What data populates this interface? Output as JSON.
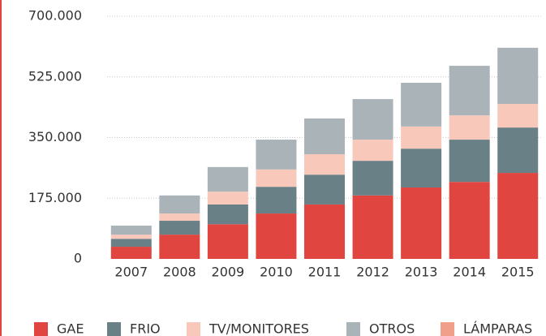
{
  "chart_data": {
    "type": "bar",
    "stacked": true,
    "categories": [
      "2007",
      "2008",
      "2009",
      "2010",
      "2011",
      "2012",
      "2013",
      "2014",
      "2015"
    ],
    "series": [
      {
        "name": "GAE",
        "color": "#e0463f",
        "values": [
          35000,
          70000,
          100000,
          131000,
          157000,
          183000,
          206000,
          222000,
          248000
        ]
      },
      {
        "name": "FRIO",
        "color": "#6a8087",
        "values": [
          23000,
          40000,
          57000,
          77000,
          86000,
          100000,
          112000,
          122000,
          131000
        ]
      },
      {
        "name": "TV/MONITORES",
        "color": "#f8c9bb",
        "values": [
          12000,
          21000,
          37000,
          50000,
          59000,
          61000,
          64000,
          70000,
          68000
        ]
      },
      {
        "name": "OTROS",
        "color": "#aab4b8",
        "values": [
          26000,
          52000,
          71000,
          86000,
          103000,
          117000,
          126000,
          143000,
          162000
        ]
      },
      {
        "name": "LÁMPARAS",
        "color": "#f0a08a",
        "values": [
          0,
          0,
          0,
          0,
          0,
          0,
          0,
          0,
          0
        ]
      }
    ],
    "ylim": [
      0,
      700000
    ],
    "yticks": [
      0,
      {
        "value": 175000,
        "label": "175.000"
      },
      {
        "value": 350000,
        "label": "350.000"
      },
      {
        "value": 525000,
        "label": "525.000"
      },
      {
        "value": 700000,
        "label": "700.000"
      }
    ],
    "grid": true,
    "legend": "bottom"
  }
}
